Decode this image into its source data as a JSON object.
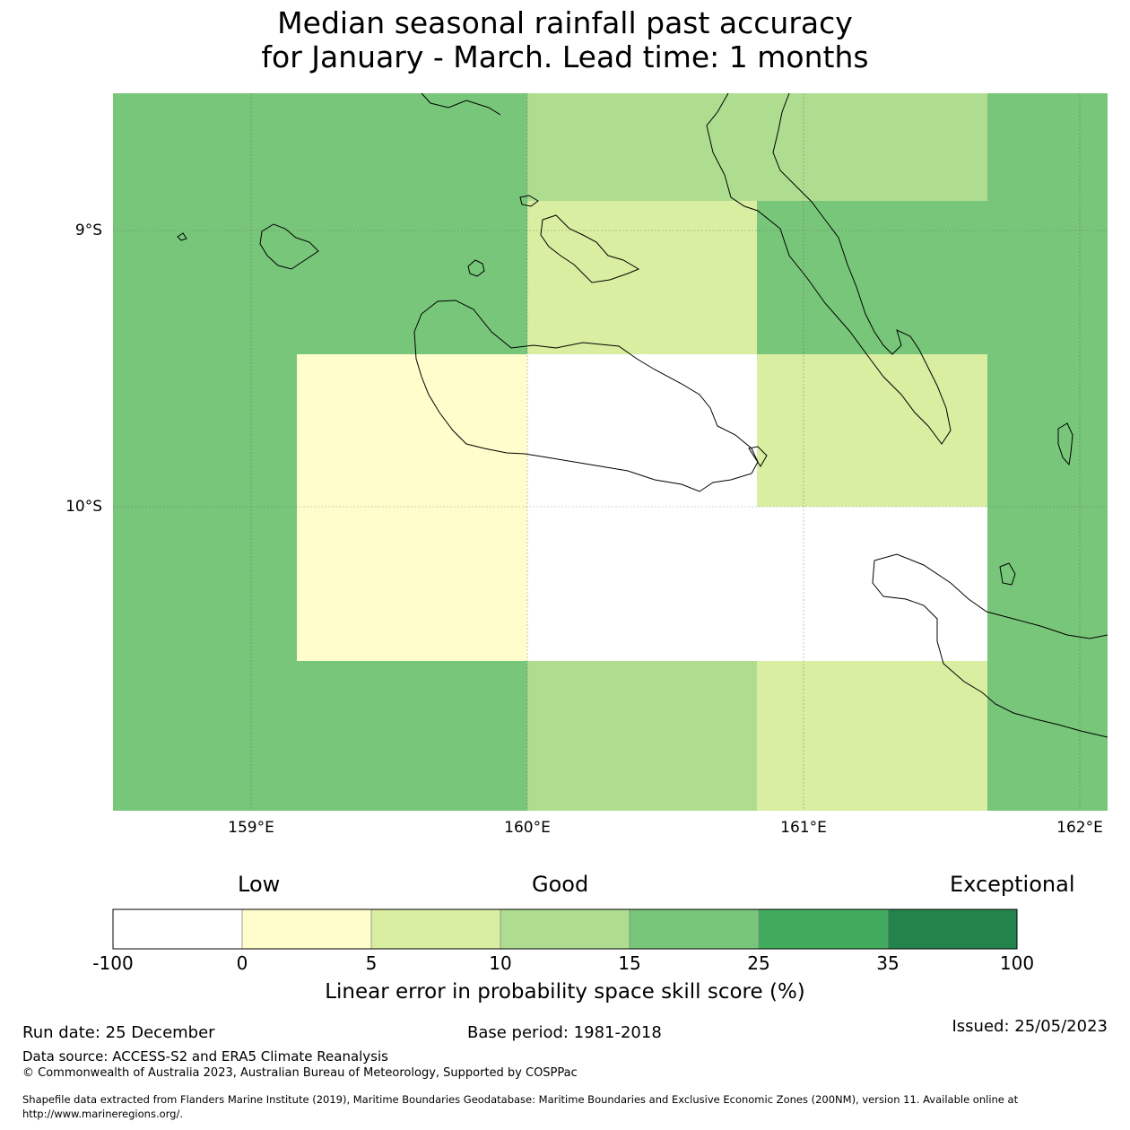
{
  "title": {
    "line1": "Median seasonal rainfall past accuracy",
    "line2": "for January - March. Lead time: 1 months"
  },
  "axes": {
    "lat_labels": [
      "9°S",
      "10°S"
    ],
    "lon_labels": [
      "159°E",
      "160°E",
      "161°E",
      "162°E"
    ]
  },
  "colors": {
    "ocean_bg": "#78c67a",
    "white": "#ffffff",
    "c0_5": "#fefdcb",
    "c5_10": "#d9eea0",
    "c10_15": "#aedd8f",
    "c15_25": "#78c67a",
    "c25_35": "#40ab5d",
    "c35_100": "#22844a"
  },
  "colorbar": {
    "categories": [
      "Low",
      "Good",
      "Exceptional"
    ],
    "ticks": [
      "-100",
      "0",
      "5",
      "10",
      "15",
      "25",
      "35",
      "100"
    ],
    "label": "Linear error in probability space skill score (%)"
  },
  "footer": {
    "run_date": "Run date: 25 December",
    "base_period": "Base period: 1981-2018",
    "issued": "Issued: 25/05/2023",
    "data_source": "Data source: ACCESS-S2 and ERA5 Climate Reanalysis",
    "copyright": "© Commonwealth of Australia 2023, Australian Bureau of Meteorology, Supported by COSPPac",
    "shapefile_line1": "Shapefile data extracted from Flanders Marine Institute (2019), Maritime Boundaries Geodatabase: Maritime Boundaries and Exclusive Economic Zones (200NM), version 11. Available online at",
    "shapefile_line2": "http://www.marineregions.org/."
  }
}
